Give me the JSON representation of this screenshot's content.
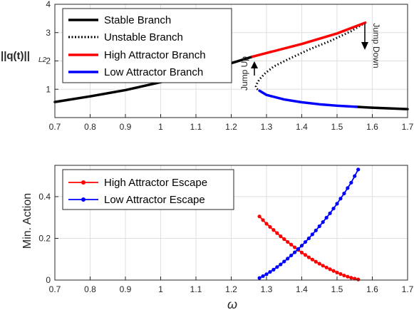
{
  "chart_data": [
    {
      "type": "line",
      "ylabel": "||q(t)||_L2",
      "xlim": [
        0.7,
        1.7
      ],
      "ylim": [
        0,
        4
      ],
      "xticks": [
        0.7,
        0.8,
        0.9,
        1,
        1.1,
        1.2,
        1.3,
        1.4,
        1.5,
        1.6,
        1.7
      ],
      "yticks": [
        1,
        2,
        3,
        4
      ],
      "grid": true,
      "legend_position": "top-left",
      "series": [
        {
          "name": "Stable Branch",
          "color": "#000000",
          "style": "solid",
          "x": [
            0.7,
            0.8,
            0.9,
            1.0,
            1.1,
            1.2,
            1.26
          ],
          "y": [
            0.55,
            0.75,
            0.97,
            1.25,
            1.55,
            1.92,
            2.15
          ]
        },
        {
          "name": "Stable Branch",
          "color": "#000000",
          "style": "solid",
          "x": [
            1.555,
            1.6,
            1.7
          ],
          "y": [
            0.38,
            0.35,
            0.3
          ]
        },
        {
          "name": "Unstable Branch",
          "color": "#000000",
          "style": "dotted",
          "x": [
            1.58,
            1.54,
            1.48,
            1.42,
            1.36,
            1.32,
            1.295,
            1.28,
            1.273,
            1.27,
            1.272,
            1.28
          ],
          "y": [
            3.35,
            3.05,
            2.7,
            2.4,
            2.05,
            1.8,
            1.55,
            1.35,
            1.2,
            1.1,
            1.02,
            0.95
          ]
        },
        {
          "name": "High Attractor Branch",
          "color": "#ff0000",
          "style": "solid",
          "x": [
            1.26,
            1.4,
            1.5,
            1.58
          ],
          "y": [
            2.15,
            2.6,
            2.97,
            3.35
          ]
        },
        {
          "name": "Low Attractor Branch",
          "color": "#0000ff",
          "style": "solid",
          "x": [
            1.28,
            1.3,
            1.35,
            1.4,
            1.45,
            1.5,
            1.555
          ],
          "y": [
            0.95,
            0.8,
            0.64,
            0.54,
            0.47,
            0.42,
            0.38
          ]
        }
      ],
      "annotations": [
        {
          "text": "Jump Up",
          "x": 1.26,
          "y": 2.15
        },
        {
          "text": "Jump Down",
          "x": 1.58,
          "y": 3.35
        }
      ]
    },
    {
      "type": "line",
      "xlabel": "ω",
      "ylabel": "Min. Action",
      "xlim": [
        0.7,
        1.7
      ],
      "ylim": [
        0,
        0.55
      ],
      "xticks": [
        0.7,
        0.8,
        0.9,
        1,
        1.1,
        1.2,
        1.3,
        1.4,
        1.5,
        1.6,
        1.7
      ],
      "yticks": [
        0,
        0.2,
        0.4
      ],
      "grid": true,
      "legend_position": "top-left",
      "series": [
        {
          "name": "High Attractor Escape",
          "color": "#ff0000",
          "marker": "dot",
          "x": [
            1.28,
            1.3,
            1.32,
            1.34,
            1.36,
            1.38,
            1.4,
            1.42,
            1.44,
            1.46,
            1.48,
            1.5,
            1.52,
            1.54,
            1.56
          ],
          "y": [
            0.305,
            0.27,
            0.24,
            0.21,
            0.183,
            0.157,
            0.132,
            0.109,
            0.088,
            0.069,
            0.052,
            0.036,
            0.022,
            0.011,
            0.003
          ]
        },
        {
          "name": "Low Attractor Escape",
          "color": "#0000ff",
          "marker": "dot",
          "x": [
            1.28,
            1.3,
            1.32,
            1.34,
            1.36,
            1.38,
            1.4,
            1.42,
            1.44,
            1.46,
            1.48,
            1.5,
            1.52,
            1.54,
            1.56
          ],
          "y": [
            0.01,
            0.028,
            0.05,
            0.075,
            0.103,
            0.133,
            0.165,
            0.2,
            0.238,
            0.278,
            0.32,
            0.366,
            0.415,
            0.467,
            0.53
          ]
        }
      ]
    }
  ],
  "legend1": {
    "stable": "Stable Branch",
    "unstable": "Unstable Branch",
    "high": "High Attractor Branch",
    "low": "Low Attractor Branch"
  },
  "legend2": {
    "high": "High Attractor Escape",
    "low": "Low Attractor Escape"
  },
  "labels": {
    "ylabel1_main": "||q(t)||",
    "ylabel1_sub": "L2",
    "ylabel2": "Min. Action",
    "xlabel2": "ω",
    "jump_up": "Jump Up",
    "jump_down": "Jump Down"
  }
}
